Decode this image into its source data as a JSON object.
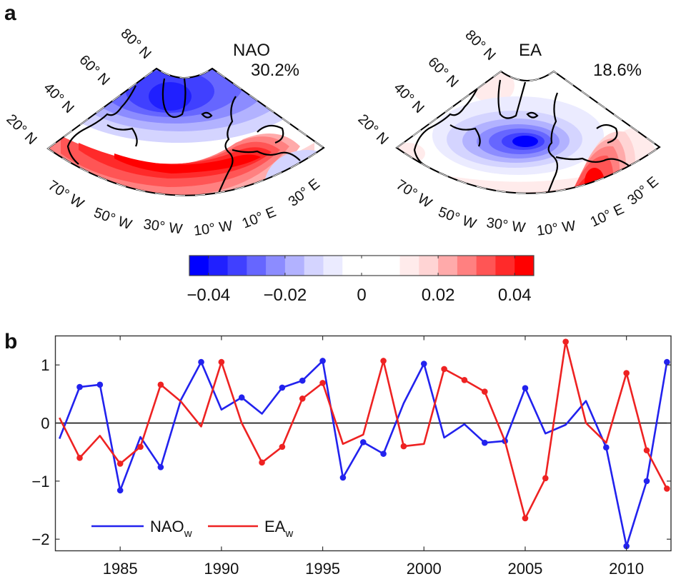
{
  "panel_a": {
    "label": "a",
    "maps": [
      {
        "title": "NAO",
        "variance": "30.2%",
        "lat_labels": [
          "20° N",
          "40° N",
          "60° N",
          "80° N"
        ],
        "lon_labels": [
          "70° W",
          "50° W",
          "30° W",
          "10° W",
          "10° E",
          "30° E"
        ]
      },
      {
        "title": "EA",
        "variance": "18.6%",
        "lat_labels": [
          "20° N",
          "40° N",
          "60° N",
          "80° N"
        ],
        "lon_labels": [
          "70° W",
          "50° W",
          "30° W",
          "10° W",
          "10° E",
          "30° E"
        ]
      }
    ],
    "colorbar": {
      "ticks": [
        "−0.04",
        "−0.02",
        "0",
        "0.02",
        "0.04"
      ],
      "tick_values": [
        -0.04,
        -0.02,
        0,
        0.02,
        0.04
      ],
      "range": [
        -0.045,
        0.045
      ],
      "colors": [
        "#0000ff",
        "#2020ff",
        "#4040ff",
        "#6666ff",
        "#8c8cff",
        "#b2b2ff",
        "#d4d4ff",
        "#ebebff",
        "#ffffff",
        "#ffffff",
        "#ffffff",
        "#ffebeb",
        "#ffd4d4",
        "#ffaaaa",
        "#ff8080",
        "#ff5555",
        "#ff2a2a",
        "#ff0000"
      ]
    }
  },
  "chart_data": {
    "type": "line",
    "panel_label": "b",
    "title": "",
    "xlabel": "",
    "ylabel": "",
    "xlim": [
      1981.8,
      2012.2
    ],
    "ylim": [
      -2.2,
      1.5
    ],
    "xticks": [
      1985,
      1990,
      1995,
      2000,
      2005,
      2010
    ],
    "xtick_labels": [
      "1985",
      "1990",
      "1995",
      "2000",
      "2005",
      "2010"
    ],
    "yticks": [
      1,
      0,
      -1,
      -2
    ],
    "ytick_labels": [
      "1",
      "0",
      "−1",
      "−2"
    ],
    "zero_line": true,
    "grid": false,
    "legend_position": "bottom-left",
    "x": [
      1982,
      1983,
      1984,
      1985,
      1986,
      1987,
      1988,
      1989,
      1990,
      1991,
      1992,
      1993,
      1994,
      1995,
      1996,
      1997,
      1998,
      1999,
      2000,
      2001,
      2002,
      2003,
      2004,
      2005,
      2006,
      2007,
      2008,
      2009,
      2010,
      2011,
      2012
    ],
    "series": [
      {
        "name": "NAO",
        "subscript": "w",
        "color": "#2222ee",
        "values": [
          -0.27,
          0.62,
          0.66,
          -1.16,
          -0.24,
          -0.76,
          0.4,
          1.05,
          0.23,
          0.44,
          0.16,
          0.61,
          0.73,
          1.07,
          -0.94,
          -0.33,
          -0.53,
          0.34,
          1.02,
          -0.25,
          -0.02,
          -0.34,
          -0.31,
          0.6,
          -0.18,
          -0.03,
          0.38,
          -0.42,
          -2.12,
          -1.0,
          1.05
        ],
        "markers": [
          false,
          true,
          true,
          true,
          false,
          true,
          false,
          true,
          false,
          true,
          false,
          true,
          true,
          true,
          true,
          true,
          true,
          false,
          true,
          false,
          false,
          true,
          true,
          true,
          false,
          false,
          false,
          true,
          true,
          true,
          true
        ]
      },
      {
        "name": "EA",
        "subscript": "w",
        "color": "#ee2222",
        "values": [
          0.09,
          -0.6,
          -0.22,
          -0.7,
          -0.41,
          0.66,
          0.37,
          -0.06,
          1.05,
          0.0,
          -0.68,
          -0.41,
          0.42,
          0.69,
          -0.36,
          -0.2,
          1.07,
          -0.4,
          -0.36,
          0.93,
          0.74,
          0.54,
          -0.31,
          -1.64,
          -0.95,
          1.4,
          0.0,
          -0.34,
          0.86,
          -0.47,
          -1.13
        ],
        "markers": [
          false,
          true,
          false,
          true,
          true,
          true,
          false,
          false,
          true,
          false,
          true,
          true,
          true,
          true,
          false,
          false,
          true,
          true,
          false,
          true,
          true,
          true,
          false,
          true,
          true,
          true,
          false,
          false,
          true,
          true,
          true
        ]
      }
    ]
  }
}
